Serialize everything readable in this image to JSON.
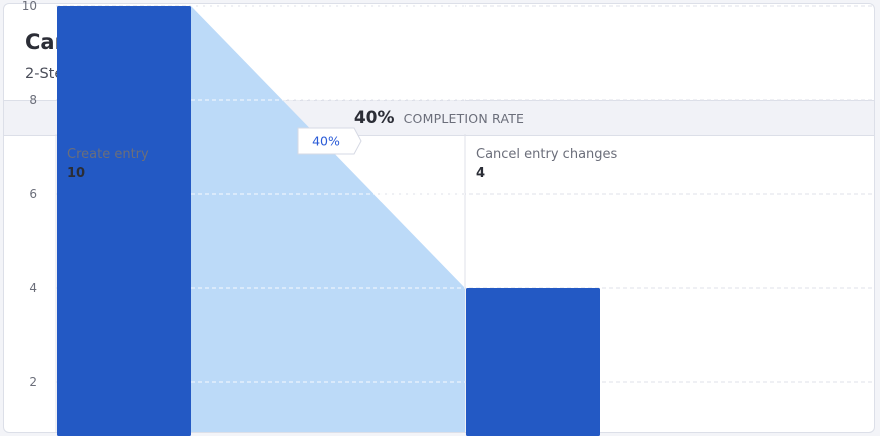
{
  "header": {
    "title": "Cancelled",
    "subtitle": "2-Step Funnel · Last 30 Days"
  },
  "summary": {
    "completion_value": "40%",
    "completion_label": "COMPLETION RATE"
  },
  "colors": {
    "bar": "#2359c4",
    "conversion_area": "#bcdaf8",
    "grid": "#dfe1ea"
  },
  "chart_data": {
    "type": "bar",
    "categories": [
      "Create entry",
      "Cancel entry changes"
    ],
    "values": [
      10,
      4
    ],
    "count_labels": [
      "10",
      "4"
    ],
    "y_ticks": [
      2,
      4,
      6,
      8,
      10
    ],
    "ylim": [
      0,
      10
    ],
    "conversion_label": "40%",
    "grid": true
  }
}
